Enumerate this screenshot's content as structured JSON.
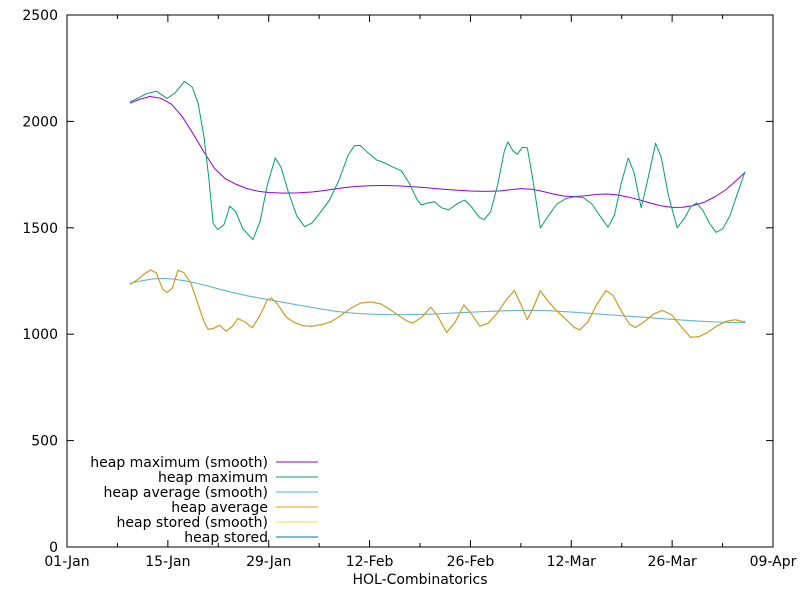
{
  "chart_data": {
    "type": "line",
    "title": "",
    "xlabel": "HOL-Combinatorics",
    "ylabel": "",
    "grid": false,
    "border_color": "#000000",
    "background_color": "#ffffff",
    "x_axis": {
      "kind": "days_since_01_jan",
      "range": [
        0,
        98
      ],
      "major_ticks": [
        {
          "day": 0,
          "label": "01-Jan"
        },
        {
          "day": 14,
          "label": "15-Jan"
        },
        {
          "day": 28,
          "label": "29-Jan"
        },
        {
          "day": 42,
          "label": "12-Feb"
        },
        {
          "day": 56,
          "label": "26-Feb"
        },
        {
          "day": 70,
          "label": "12-Mar"
        },
        {
          "day": 84,
          "label": "26-Mar"
        },
        {
          "day": 98,
          "label": "09-Apr"
        }
      ],
      "minor_tick_days": [
        7,
        21,
        35,
        49,
        63,
        77,
        91
      ]
    },
    "y_axis": {
      "range": [
        0,
        2500
      ],
      "major_ticks": [
        0,
        500,
        1000,
        1500,
        2000,
        2500
      ]
    },
    "legend": {
      "position": "inside-bottom-left",
      "entries": [
        {
          "label": "heap maximum (smooth)",
          "color": "#9400d3"
        },
        {
          "label": "heap maximum",
          "color": "#009e73"
        },
        {
          "label": "heap average (smooth)",
          "color": "#56b4e9"
        },
        {
          "label": "heap average",
          "color": "#e69f00"
        },
        {
          "label": "heap stored (smooth)",
          "color": "#f0e442"
        },
        {
          "label": "heap stored",
          "color": "#0072b2"
        }
      ]
    },
    "series": [
      {
        "name": "heap maximum (smooth)",
        "color": "#9400d3",
        "points": [
          [
            8.8,
            2086
          ],
          [
            10,
            2103
          ],
          [
            11.5,
            2117
          ],
          [
            13,
            2109
          ],
          [
            14.5,
            2081
          ],
          [
            16,
            2022
          ],
          [
            17.5,
            1942
          ],
          [
            19,
            1856
          ],
          [
            20.5,
            1778
          ],
          [
            22,
            1730
          ],
          [
            23.5,
            1704
          ],
          [
            25,
            1684
          ],
          [
            26.5,
            1672
          ],
          [
            28,
            1666
          ],
          [
            30,
            1663
          ],
          [
            32,
            1664
          ],
          [
            34,
            1668
          ],
          [
            35.5,
            1674
          ],
          [
            37,
            1682
          ],
          [
            38.5,
            1689
          ],
          [
            40,
            1694
          ],
          [
            42,
            1698
          ],
          [
            44,
            1699
          ],
          [
            46,
            1697
          ],
          [
            48,
            1693
          ],
          [
            50,
            1688
          ],
          [
            52,
            1682
          ],
          [
            54,
            1677
          ],
          [
            56,
            1673
          ],
          [
            58,
            1671
          ],
          [
            60,
            1673
          ],
          [
            61.5,
            1679
          ],
          [
            63,
            1684
          ],
          [
            64.5,
            1681
          ],
          [
            66,
            1671
          ],
          [
            67.5,
            1659
          ],
          [
            69,
            1649
          ],
          [
            70.5,
            1647
          ],
          [
            72,
            1651
          ],
          [
            73.5,
            1657
          ],
          [
            75,
            1659
          ],
          [
            76.5,
            1654
          ],
          [
            78,
            1644
          ],
          [
            79.5,
            1631
          ],
          [
            81,
            1616
          ],
          [
            82.5,
            1603
          ],
          [
            84,
            1596
          ],
          [
            85.5,
            1597
          ],
          [
            87,
            1605
          ],
          [
            88.5,
            1621
          ],
          [
            90,
            1647
          ],
          [
            91.5,
            1680
          ],
          [
            92.8,
            1719
          ],
          [
            94.1,
            1760
          ]
        ]
      },
      {
        "name": "heap maximum",
        "color": "#009e73",
        "points": [
          [
            8.8,
            2092
          ],
          [
            10,
            2112
          ],
          [
            11,
            2130
          ],
          [
            12.4,
            2142
          ],
          [
            13.9,
            2108
          ],
          [
            15,
            2134
          ],
          [
            16.3,
            2188
          ],
          [
            17.4,
            2160
          ],
          [
            18.2,
            2085
          ],
          [
            19,
            1930
          ],
          [
            19.7,
            1730
          ],
          [
            20.3,
            1520
          ],
          [
            20.9,
            1492
          ],
          [
            21.8,
            1515
          ],
          [
            22.6,
            1602
          ],
          [
            23.4,
            1576
          ],
          [
            24.4,
            1496
          ],
          [
            25.8,
            1444
          ],
          [
            26.8,
            1530
          ],
          [
            27.8,
            1700
          ],
          [
            28.9,
            1828
          ],
          [
            29.7,
            1785
          ],
          [
            30.7,
            1670
          ],
          [
            31.9,
            1555
          ],
          [
            33,
            1505
          ],
          [
            34,
            1522
          ],
          [
            35.2,
            1574
          ],
          [
            36.4,
            1628
          ],
          [
            37.7,
            1720
          ],
          [
            39,
            1840
          ],
          [
            39.9,
            1886
          ],
          [
            40.7,
            1887
          ],
          [
            41.7,
            1855
          ],
          [
            43,
            1818
          ],
          [
            44.1,
            1805
          ],
          [
            45.2,
            1786
          ],
          [
            46.4,
            1768
          ],
          [
            47.5,
            1710
          ],
          [
            48.6,
            1632
          ],
          [
            49.2,
            1607
          ],
          [
            50.1,
            1617
          ],
          [
            51,
            1622
          ],
          [
            52,
            1594
          ],
          [
            53,
            1584
          ],
          [
            54.2,
            1614
          ],
          [
            55.2,
            1630
          ],
          [
            56.2,
            1596
          ],
          [
            57.2,
            1550
          ],
          [
            57.9,
            1538
          ],
          [
            58.8,
            1575
          ],
          [
            59.8,
            1705
          ],
          [
            60.7,
            1860
          ],
          [
            61.2,
            1903
          ],
          [
            61.9,
            1862
          ],
          [
            62.5,
            1846
          ],
          [
            63.2,
            1878
          ],
          [
            63.9,
            1876
          ],
          [
            64.6,
            1740
          ],
          [
            65.7,
            1499
          ],
          [
            66.8,
            1555
          ],
          [
            68,
            1612
          ],
          [
            69.3,
            1638
          ],
          [
            70.5,
            1646
          ],
          [
            71.7,
            1642
          ],
          [
            72.9,
            1610
          ],
          [
            74,
            1555
          ],
          [
            75.1,
            1503
          ],
          [
            76,
            1560
          ],
          [
            76.9,
            1705
          ],
          [
            77.9,
            1828
          ],
          [
            78.7,
            1760
          ],
          [
            79.7,
            1594
          ],
          [
            80.7,
            1740
          ],
          [
            81.7,
            1897
          ],
          [
            82.5,
            1830
          ],
          [
            83.5,
            1650
          ],
          [
            84.7,
            1500
          ],
          [
            85.7,
            1545
          ],
          [
            86.6,
            1600
          ],
          [
            87.4,
            1617
          ],
          [
            88.3,
            1580
          ],
          [
            89.2,
            1520
          ],
          [
            90.1,
            1479
          ],
          [
            91,
            1495
          ],
          [
            92,
            1555
          ],
          [
            93,
            1655
          ],
          [
            94.1,
            1762
          ]
        ]
      },
      {
        "name": "heap average (smooth)",
        "color": "#56b4e9",
        "points": [
          [
            8.8,
            1240
          ],
          [
            10.5,
            1252
          ],
          [
            12,
            1260
          ],
          [
            13.5,
            1262
          ],
          [
            15,
            1258
          ],
          [
            16.5,
            1250
          ],
          [
            18,
            1239
          ],
          [
            19.5,
            1227
          ],
          [
            21,
            1213
          ],
          [
            23,
            1196
          ],
          [
            25,
            1181
          ],
          [
            27,
            1168
          ],
          [
            29,
            1156
          ],
          [
            31,
            1144
          ],
          [
            33,
            1132
          ],
          [
            35,
            1120
          ],
          [
            37,
            1109
          ],
          [
            39,
            1101
          ],
          [
            41,
            1096
          ],
          [
            43,
            1093
          ],
          [
            45,
            1092
          ],
          [
            47,
            1092
          ],
          [
            49,
            1093
          ],
          [
            51,
            1095
          ],
          [
            53,
            1098
          ],
          [
            55,
            1102
          ],
          [
            57,
            1105
          ],
          [
            59,
            1108
          ],
          [
            61,
            1110
          ],
          [
            63,
            1112
          ],
          [
            65,
            1112
          ],
          [
            67,
            1110
          ],
          [
            69,
            1106
          ],
          [
            71,
            1102
          ],
          [
            73,
            1097
          ],
          [
            75,
            1092
          ],
          [
            77,
            1087
          ],
          [
            79,
            1082
          ],
          [
            81,
            1077
          ],
          [
            83,
            1072
          ],
          [
            85,
            1067
          ],
          [
            87,
            1063
          ],
          [
            89,
            1059
          ],
          [
            91,
            1056
          ],
          [
            92.5,
            1055
          ],
          [
            94.1,
            1054
          ]
        ]
      },
      {
        "name": "heap average",
        "color": "#e69f00",
        "points": [
          [
            8.8,
            1235
          ],
          [
            9.6,
            1252
          ],
          [
            10.8,
            1285
          ],
          [
            11.6,
            1302
          ],
          [
            12.4,
            1288
          ],
          [
            13.3,
            1210
          ],
          [
            13.9,
            1196
          ],
          [
            14.6,
            1215
          ],
          [
            15.4,
            1300
          ],
          [
            16.2,
            1290
          ],
          [
            17.2,
            1240
          ],
          [
            18.2,
            1140
          ],
          [
            19,
            1060
          ],
          [
            19.6,
            1022
          ],
          [
            20.4,
            1028
          ],
          [
            21.2,
            1042
          ],
          [
            22.1,
            1014
          ],
          [
            23,
            1038
          ],
          [
            23.7,
            1074
          ],
          [
            24.7,
            1058
          ],
          [
            25.7,
            1030
          ],
          [
            26.7,
            1082
          ],
          [
            27.8,
            1160
          ],
          [
            28.4,
            1170
          ],
          [
            29.2,
            1142
          ],
          [
            30.4,
            1082
          ],
          [
            31.4,
            1058
          ],
          [
            32.7,
            1040
          ],
          [
            34,
            1037
          ],
          [
            35.3,
            1045
          ],
          [
            36.6,
            1058
          ],
          [
            38,
            1088
          ],
          [
            39.4,
            1122
          ],
          [
            40.8,
            1146
          ],
          [
            42.2,
            1152
          ],
          [
            43.6,
            1142
          ],
          [
            45,
            1112
          ],
          [
            46.2,
            1084
          ],
          [
            47.2,
            1062
          ],
          [
            48,
            1052
          ],
          [
            49.3,
            1082
          ],
          [
            50.5,
            1128
          ],
          [
            51.5,
            1082
          ],
          [
            52.7,
            1008
          ],
          [
            53.9,
            1058
          ],
          [
            55.1,
            1138
          ],
          [
            56.2,
            1092
          ],
          [
            57.3,
            1038
          ],
          [
            58.5,
            1052
          ],
          [
            59.7,
            1098
          ],
          [
            60.9,
            1158
          ],
          [
            62.1,
            1205
          ],
          [
            63,
            1140
          ],
          [
            63.9,
            1068
          ],
          [
            64.8,
            1130
          ],
          [
            65.7,
            1205
          ],
          [
            66.6,
            1162
          ],
          [
            67.9,
            1112
          ],
          [
            69.2,
            1072
          ],
          [
            70.4,
            1032
          ],
          [
            71.2,
            1020
          ],
          [
            72.3,
            1058
          ],
          [
            73.5,
            1138
          ],
          [
            74.8,
            1205
          ],
          [
            75.8,
            1182
          ],
          [
            76.9,
            1112
          ],
          [
            78.1,
            1046
          ],
          [
            78.9,
            1032
          ],
          [
            80.1,
            1058
          ],
          [
            81.4,
            1094
          ],
          [
            82.6,
            1112
          ],
          [
            83.9,
            1092
          ],
          [
            85.1,
            1042
          ],
          [
            86.5,
            986
          ],
          [
            87.7,
            988
          ],
          [
            88.9,
            1008
          ],
          [
            90.2,
            1038
          ],
          [
            91.5,
            1060
          ],
          [
            92.7,
            1068
          ],
          [
            94.1,
            1058
          ]
        ]
      },
      {
        "name": "heap stored (smooth)",
        "color": "#f0e442",
        "points_same_as": 2
      },
      {
        "name": "heap stored",
        "color": "#0072b2",
        "points_same_as": 3
      }
    ],
    "draw_order": [
      0,
      1,
      4,
      5,
      2,
      3
    ]
  }
}
